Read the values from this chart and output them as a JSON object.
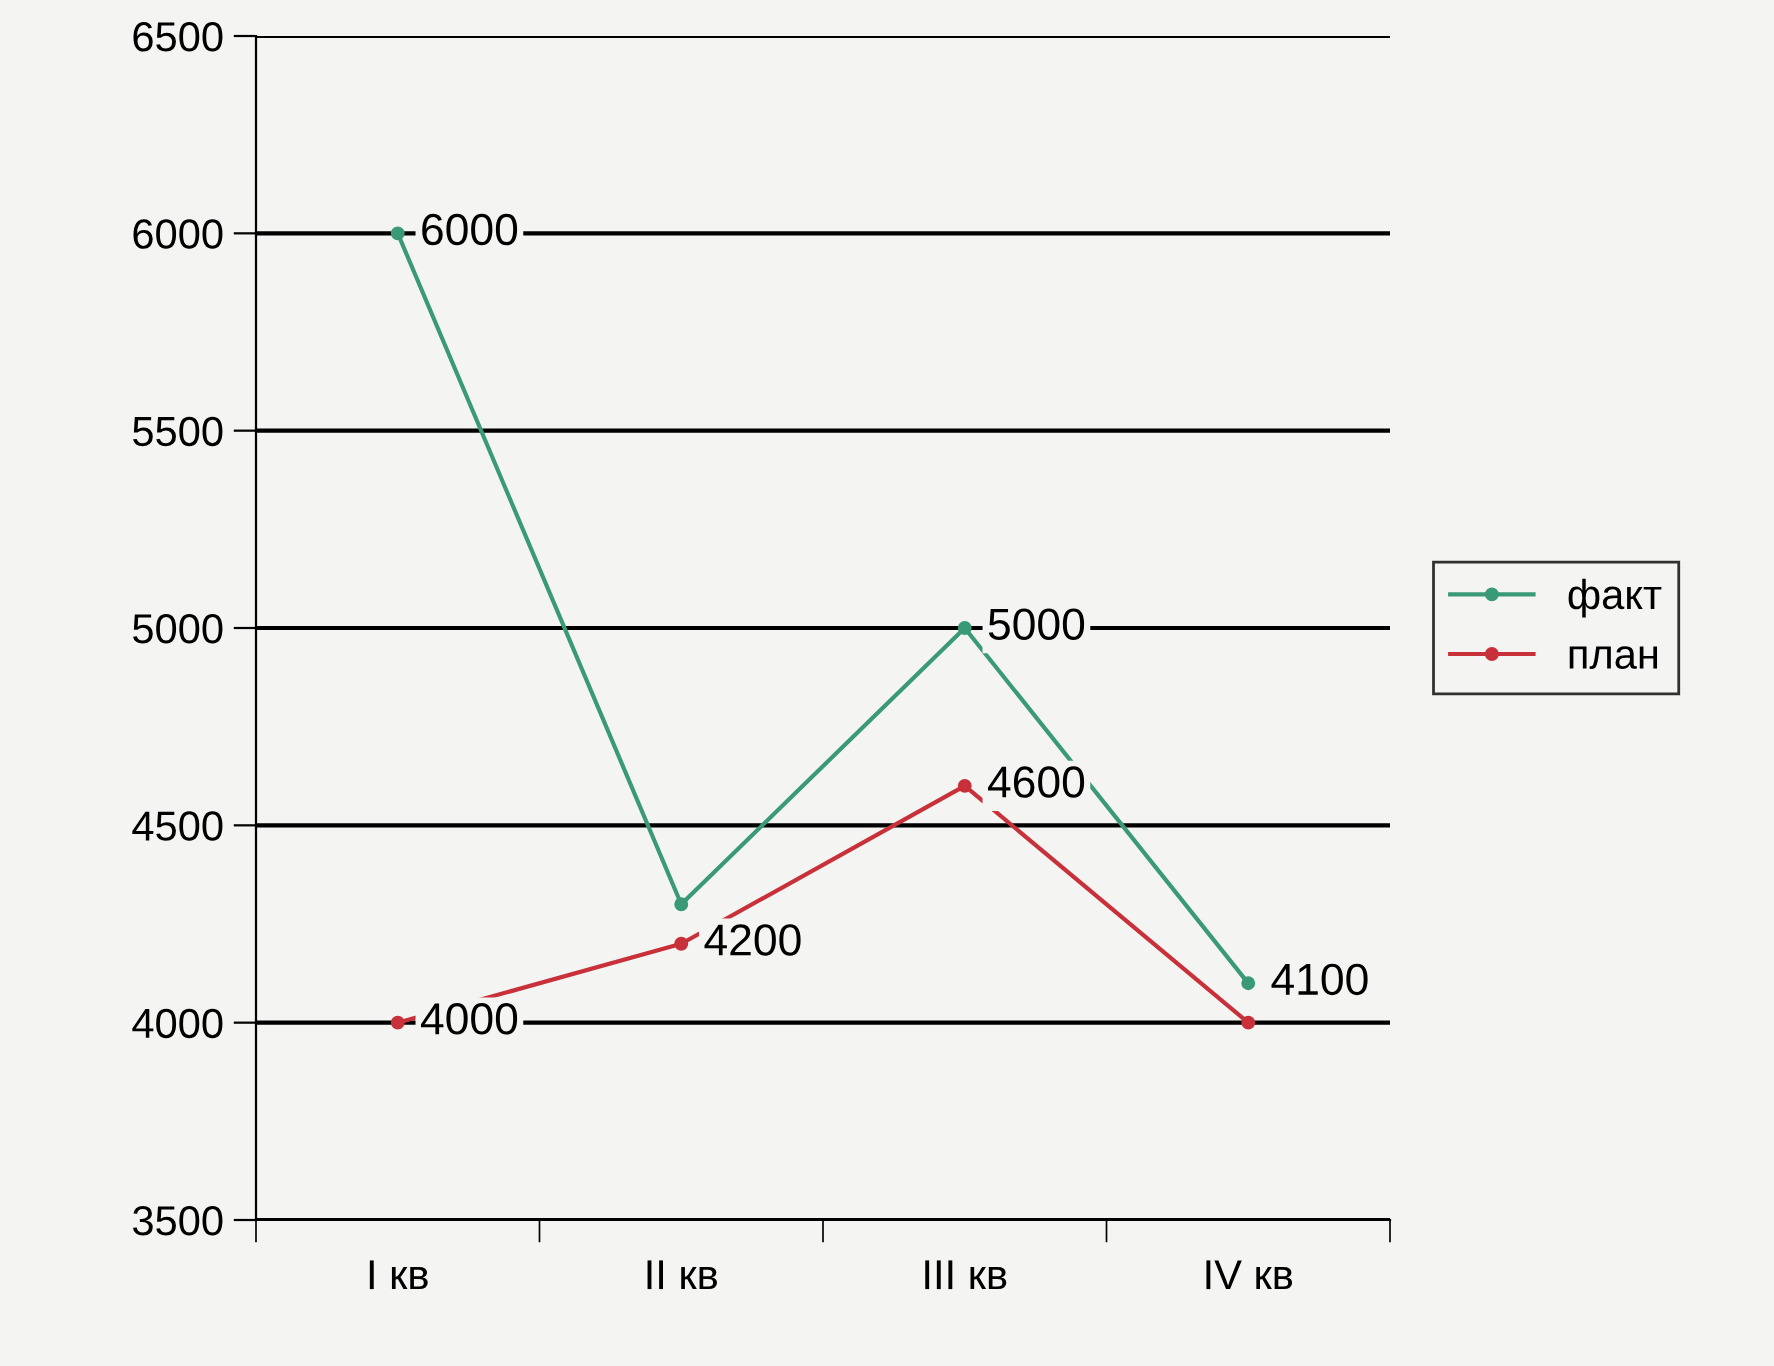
{
  "chart_data": {
    "type": "line",
    "categories": [
      "I кв",
      "II кв",
      "III кв",
      "IV кв"
    ],
    "series": [
      {
        "name": "факт",
        "color": "#3a9a78",
        "values": [
          6000,
          4300,
          5000,
          4100
        ],
        "value_labels": [
          "6000",
          null,
          "5000",
          "4100"
        ]
      },
      {
        "name": "план",
        "color": "#c8303a",
        "values": [
          4000,
          4200,
          4600,
          4000
        ],
        "value_labels": [
          "4000",
          "4200",
          "4600",
          null
        ]
      }
    ],
    "ylim": [
      3500,
      6500
    ],
    "yticks": [
      3500,
      4000,
      4500,
      5000,
      5500,
      6000,
      6500
    ],
    "grid": "y",
    "legend": "right",
    "marker": "circle",
    "line_style": "solid"
  }
}
